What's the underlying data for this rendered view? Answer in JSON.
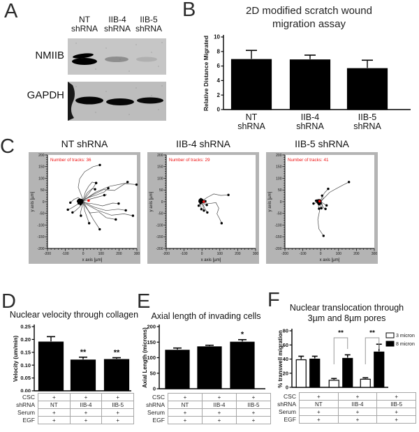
{
  "panels": {
    "a": {
      "label": "A",
      "lane_headers": [
        [
          "NT",
          "shRNA"
        ],
        [
          "IIB-4",
          "shRNA"
        ],
        [
          "IIB-5",
          "shRNA"
        ]
      ],
      "row_labels": [
        "NMIIB",
        "GAPDH"
      ],
      "bands": {
        "NMIIB": [
          "strong",
          "faint",
          "very_faint"
        ],
        "GAPDH": [
          "strong",
          "strong",
          "strong"
        ]
      }
    },
    "b": {
      "label": "B"
    },
    "c": {
      "label": "C"
    },
    "d": {
      "label": "D"
    },
    "e": {
      "label": "E"
    },
    "f": {
      "label": "F"
    }
  },
  "conditions": {
    "row_labels": [
      "CSC",
      "shRNA",
      "Serum",
      "EGF"
    ],
    "rows": [
      [
        "+",
        "+",
        "+"
      ],
      [
        "NT",
        "IIB-4",
        "IIB-5"
      ],
      [
        "+",
        "+",
        "+"
      ],
      [
        "+",
        "+",
        "+"
      ]
    ]
  },
  "colors": {
    "bar_fill": "#000000",
    "track_bg": "#b4b4b4",
    "annotation_red": "#ee1111",
    "bracket_gray": "#999999"
  },
  "chart_data": [
    {
      "id": "scratch_wound",
      "panel": "B",
      "type": "bar",
      "title": [
        "2D modified scratch wound",
        "migration assay"
      ],
      "ylabel": "Relative Distance Migrated",
      "ylim": [
        0,
        10
      ],
      "yticks": [
        "0",
        "2",
        "4",
        "6",
        "8",
        "10"
      ],
      "categories": [
        [
          "NT",
          "shRNA"
        ],
        [
          "IIB-4",
          "shRNA"
        ],
        [
          "IIB-5",
          "shRNA"
        ]
      ],
      "values": [
        6.9,
        6.85,
        5.65
      ],
      "errors": [
        1.25,
        0.65,
        1.15
      ]
    },
    {
      "id": "tracks_nt",
      "panel": "C",
      "type": "line",
      "variant": "migration-tracks",
      "title": "NT shRNA",
      "annotation": "Number of tracks: 36",
      "xlabel": "x axis [µm]",
      "ylabel": "y axis [µm]",
      "xlim": [
        -200,
        300
      ],
      "ylim": [
        -200,
        200
      ],
      "xticks": [
        -200,
        -100,
        0,
        100,
        200,
        300
      ],
      "yticks": [
        -200,
        -150,
        -100,
        -50,
        0,
        50,
        100,
        150,
        200
      ],
      "origin_dot": [
        30,
        5
      ],
      "blob": [
        -20,
        2
      ],
      "cluster": [
        [
          -13,
          5
        ],
        [
          -6,
          -3
        ],
        [
          -26,
          -8
        ],
        [
          -16,
          -12
        ],
        [
          -31,
          2
        ],
        [
          -9,
          8
        ],
        [
          -19,
          -4
        ],
        [
          -24,
          8
        ],
        [
          -11,
          -8
        ],
        [
          -4,
          4
        ]
      ],
      "tracks": [
        [
          [
            0,
            5
          ],
          [
            -12,
            30
          ],
          [
            -28,
            62
          ],
          [
            -20,
            98
          ],
          [
            8,
            128
          ],
          [
            55,
            150
          ],
          [
            93,
            157
          ]
        ],
        [
          [
            0,
            0
          ],
          [
            18,
            22
          ],
          [
            38,
            42
          ],
          [
            58,
            62
          ],
          [
            72,
            80
          ]
        ],
        [
          [
            -5,
            2
          ],
          [
            30,
            18
          ],
          [
            78,
            30
          ],
          [
            118,
            42
          ],
          [
            140,
            58
          ]
        ],
        [
          [
            2,
            6
          ],
          [
            55,
            30
          ],
          [
            115,
            52
          ],
          [
            175,
            48
          ],
          [
            215,
            68
          ],
          [
            248,
            84
          ]
        ],
        [
          [
            6,
            8
          ],
          [
            68,
            40
          ],
          [
            148,
            66
          ],
          [
            228,
            78
          ],
          [
            298,
            73
          ]
        ],
        [
          [
            0,
            -4
          ],
          [
            48,
            -8
          ],
          [
            108,
            -18
          ],
          [
            165,
            -6
          ],
          [
            198,
            -8
          ]
        ],
        [
          [
            0,
            0
          ],
          [
            58,
            -22
          ],
          [
            128,
            -38
          ],
          [
            196,
            -32
          ],
          [
            238,
            -37
          ]
        ],
        [
          [
            4,
            -6
          ],
          [
            78,
            -36
          ],
          [
            158,
            -58
          ],
          [
            228,
            -52
          ],
          [
            278,
            -60
          ]
        ],
        [
          [
            0,
            -8
          ],
          [
            38,
            -48
          ],
          [
            88,
            -44
          ],
          [
            128,
            -68
          ],
          [
            182,
            -76
          ]
        ],
        [
          [
            0,
            0
          ],
          [
            28,
            -38
          ],
          [
            58,
            -78
          ],
          [
            92,
            -118
          ]
        ],
        [
          [
            0,
            -4
          ],
          [
            8,
            -38
          ],
          [
            22,
            -68
          ],
          [
            33,
            -92
          ]
        ],
        [
          [
            -4,
            0
          ],
          [
            -38,
            -14
          ],
          [
            -68,
            -28
          ],
          [
            -86,
            -34
          ]
        ],
        [
          [
            0,
            -4
          ],
          [
            -22,
            -24
          ],
          [
            -46,
            -40
          ],
          [
            -60,
            -46
          ]
        ],
        [
          [
            0,
            0
          ],
          [
            -8,
            -24
          ],
          [
            -16,
            -48
          ],
          [
            -13,
            -60
          ]
        ],
        [
          [
            0,
            4
          ],
          [
            22,
            38
          ],
          [
            50,
            56
          ],
          [
            66,
            53
          ]
        ],
        [
          [
            0,
            8
          ],
          [
            12,
            42
          ],
          [
            30,
            66
          ],
          [
            50,
            84
          ],
          [
            72,
            80
          ]
        ],
        [
          [
            -4,
            4
          ],
          [
            -28,
            18
          ],
          [
            -52,
            10
          ],
          [
            -72,
            -4
          ]
        ],
        [
          [
            2,
            2
          ],
          [
            42,
            12
          ],
          [
            92,
            22
          ],
          [
            132,
            30
          ],
          [
            118,
            28
          ]
        ]
      ]
    },
    {
      "id": "tracks_iib4",
      "panel": "C",
      "type": "line",
      "variant": "migration-tracks",
      "title": "IIB-4 shRNA",
      "annotation": "Number of tracks: 29",
      "xlabel": "x axis [µm]",
      "ylabel": "y axis [µm]",
      "xlim": [
        -200,
        300
      ],
      "ylim": [
        -200,
        200
      ],
      "xticks": [
        -200,
        -100,
        0,
        100,
        200,
        300
      ],
      "yticks": [
        -200,
        -150,
        -100,
        -50,
        0,
        50,
        100,
        150,
        200
      ],
      "origin_dot": [
        10,
        0
      ],
      "blob": [
        -5,
        3
      ],
      "cluster": [
        [
          -2,
          -2
        ],
        [
          -10,
          -2
        ],
        [
          -4,
          8
        ],
        [
          -12,
          6
        ],
        [
          -8,
          -8
        ],
        [
          0,
          2
        ],
        [
          -14,
          0
        ],
        [
          -6,
          12
        ]
      ],
      "tracks": [
        [
          [
            0,
            2
          ],
          [
            28,
            18
          ],
          [
            66,
            33
          ],
          [
            106,
            27
          ],
          [
            148,
            29
          ]
        ],
        [
          [
            4,
            -4
          ],
          [
            42,
            -8
          ],
          [
            78,
            -4
          ],
          [
            94,
            -28
          ],
          [
            84,
            -52
          ],
          [
            98,
            -72
          ],
          [
            110,
            -92
          ]
        ],
        [
          [
            0,
            0
          ],
          [
            14,
            -10
          ],
          [
            27,
            -14
          ]
        ],
        [
          [
            0,
            -4
          ],
          [
            7,
            -22
          ],
          [
            11,
            -38
          ]
        ],
        [
          [
            4,
            -8
          ],
          [
            18,
            -32
          ],
          [
            30,
            -46
          ]
        ],
        [
          [
            0,
            0
          ],
          [
            -7,
            -16
          ],
          [
            -3,
            -32
          ]
        ],
        [
          [
            0,
            4
          ],
          [
            11,
            8
          ],
          [
            19,
            2
          ]
        ],
        [
          [
            -4,
            0
          ],
          [
            -13,
            -8
          ],
          [
            -18,
            -17
          ]
        ]
      ]
    },
    {
      "id": "tracks_iib5",
      "panel": "C",
      "type": "line",
      "variant": "migration-tracks",
      "title": "IIB-5 shRNA",
      "annotation": "Number of tracks: 41",
      "xlabel": "x axis [µm]",
      "ylabel": "y axis [µm]",
      "xlim": [
        -200,
        300
      ],
      "ylim": [
        -200,
        200
      ],
      "xticks": [
        -200,
        -100,
        0,
        100,
        200,
        300
      ],
      "yticks": [
        -200,
        -150,
        -100,
        -50,
        0,
        50,
        100,
        150,
        200
      ],
      "origin_dot": [
        -6,
        2
      ],
      "blob": [
        -9,
        0
      ],
      "cluster": [
        [
          -4,
          -4
        ],
        [
          -14,
          -6
        ],
        [
          -6,
          6
        ],
        [
          -16,
          4
        ],
        [
          -2,
          4
        ],
        [
          -12,
          -10
        ],
        [
          -18,
          -2
        ],
        [
          -8,
          -12
        ],
        [
          0,
          -8
        ],
        [
          -20,
          6
        ]
      ],
      "tracks": [
        [
          [
            0,
            0
          ],
          [
            22,
            18
          ],
          [
            50,
            40
          ],
          [
            88,
            56
          ],
          [
            126,
            72
          ],
          [
            158,
            84
          ]
        ],
        [
          [
            0,
            2
          ],
          [
            8,
            22
          ],
          [
            24,
            40
          ],
          [
            42,
            55
          ]
        ],
        [
          [
            0,
            -4
          ],
          [
            -6,
            -38
          ],
          [
            -16,
            -76
          ],
          [
            -10,
            -116
          ],
          [
            16,
            -146
          ]
        ],
        [
          [
            0,
            0
          ],
          [
            18,
            -9
          ],
          [
            33,
            -16
          ]
        ],
        [
          [
            0,
            -4
          ],
          [
            16,
            -26
          ],
          [
            27,
            -31
          ]
        ],
        [
          [
            -4,
            0
          ],
          [
            -22,
            -4
          ],
          [
            -40,
            -8
          ]
        ],
        [
          [
            0,
            0
          ],
          [
            -13,
            9
          ],
          [
            -26,
            4
          ]
        ],
        [
          [
            0,
            4
          ],
          [
            9,
            -13
          ],
          [
            4,
            -28
          ]
        ],
        [
          [
            -4,
            -4
          ],
          [
            -13,
            -18
          ],
          [
            -9,
            -30
          ]
        ],
        [
          [
            2,
            2
          ],
          [
            14,
            14
          ],
          [
            8,
            26
          ]
        ]
      ]
    },
    {
      "id": "nuclear_velocity",
      "panel": "D",
      "type": "bar",
      "title": "Nuclear velocity through collagen",
      "ylabel": "Velocity (um/min)",
      "ylim": [
        0,
        0.25
      ],
      "yticks": [
        "0.00",
        "0.05",
        "0.10",
        "0.15",
        "0.20",
        "0.25"
      ],
      "categories": [
        "NT",
        "IIB-4",
        "IIB-5"
      ],
      "values": [
        0.19,
        0.12,
        0.122
      ],
      "errors": [
        0.021,
        0.011,
        0.007
      ],
      "sig": [
        "",
        "**",
        "**"
      ]
    },
    {
      "id": "axial_length",
      "panel": "E",
      "type": "bar",
      "title": "Axial length of invading cells",
      "ylabel": "Axial Length (microns)",
      "ylim": [
        0,
        200
      ],
      "yticks": [
        "0",
        "50",
        "100",
        "150",
        "200"
      ],
      "categories": [
        "NT",
        "IIB-4",
        "IIB-5"
      ],
      "values": [
        124,
        135,
        150
      ],
      "errors": [
        7,
        5,
        8
      ],
      "sig": [
        "",
        "",
        "*"
      ]
    },
    {
      "id": "transwell",
      "panel": "F",
      "type": "bar",
      "title": [
        "Nuclear translocation through",
        "3µm and 8µm pores"
      ],
      "ylabel": "% transwell migration",
      "ylim": [
        0,
        80
      ],
      "yticks": [
        "0",
        "20",
        "40",
        "60",
        "80"
      ],
      "categories": [
        "NT",
        "IIB-4",
        "IIB-5"
      ],
      "series": [
        {
          "name": "3 micron",
          "fill": "#ffffff",
          "values": [
            39,
            10,
            11.5
          ],
          "errors": [
            5,
            2.5,
            2
          ]
        },
        {
          "name": "8 micron",
          "fill": "#000000",
          "values": [
            40,
            41,
            50
          ],
          "errors": [
            4,
            5,
            11
          ]
        }
      ],
      "brackets": [
        {
          "group": 1,
          "label": "**"
        },
        {
          "group": 2,
          "label": "**"
        }
      ]
    }
  ]
}
